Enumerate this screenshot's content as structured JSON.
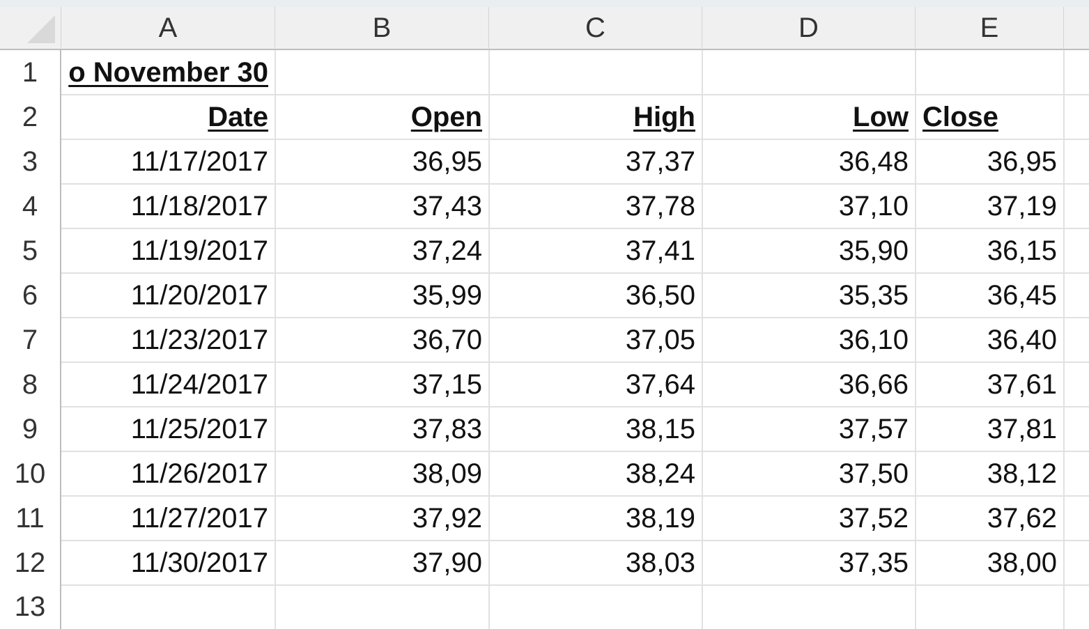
{
  "columns": [
    "A",
    "B",
    "C",
    "D",
    "E"
  ],
  "rows": [
    "1",
    "2",
    "3",
    "4",
    "5",
    "6",
    "7",
    "8",
    "9",
    "10",
    "11",
    "12",
    "13"
  ],
  "a1_text": "o November 30",
  "headers": {
    "date": "Date",
    "open": "Open",
    "high": "High",
    "low": "Low",
    "close": "Close"
  },
  "data": [
    [
      "11/17/2017",
      "36,95",
      "37,37",
      "36,48",
      "36,95"
    ],
    [
      "11/18/2017",
      "37,43",
      "37,78",
      "37,10",
      "37,19"
    ],
    [
      "11/19/2017",
      "37,24",
      "37,41",
      "35,90",
      "36,15"
    ],
    [
      "11/20/2017",
      "35,99",
      "36,50",
      "35,35",
      "36,45"
    ],
    [
      "11/23/2017",
      "36,70",
      "37,05",
      "36,10",
      "36,40"
    ],
    [
      "11/24/2017",
      "37,15",
      "37,64",
      "36,66",
      "37,61"
    ],
    [
      "11/25/2017",
      "37,83",
      "38,15",
      "37,57",
      "37,81"
    ],
    [
      "11/26/2017",
      "38,09",
      "38,24",
      "37,50",
      "38,12"
    ],
    [
      "11/27/2017",
      "37,92",
      "38,19",
      "37,52",
      "37,62"
    ],
    [
      "11/30/2017",
      "37,90",
      "38,03",
      "37,35",
      "38,00"
    ]
  ]
}
